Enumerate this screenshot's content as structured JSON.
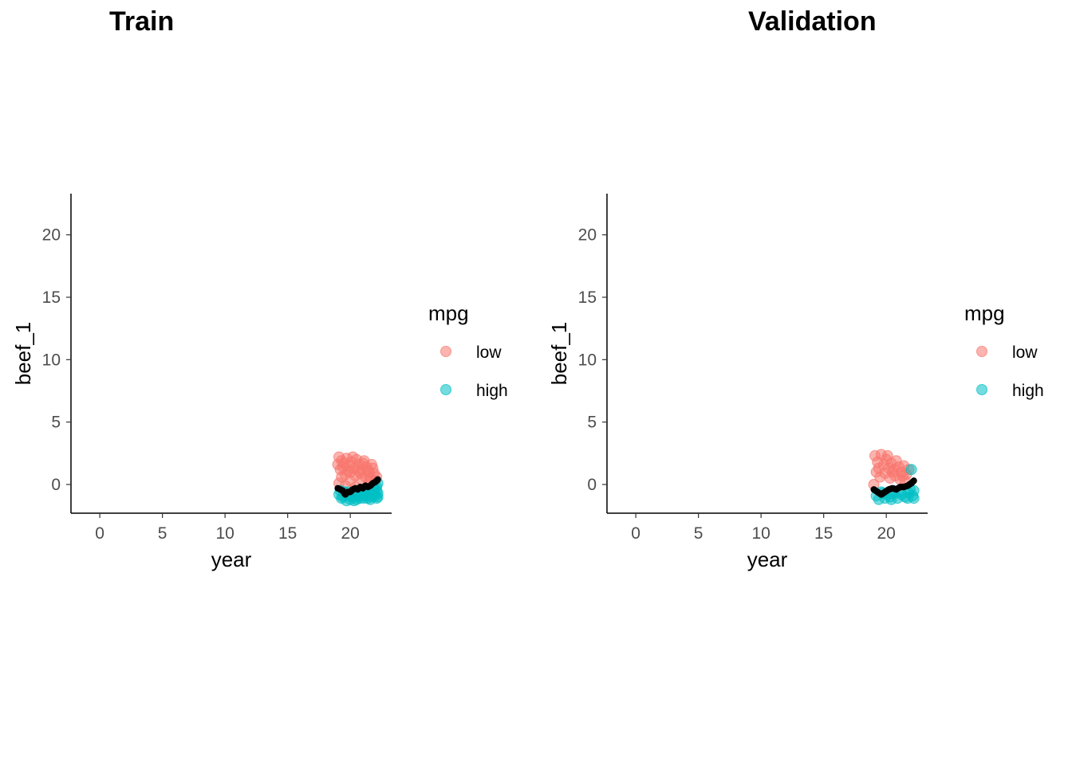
{
  "chart_data": [
    {
      "type": "scatter",
      "title": "Train",
      "xlabel": "year",
      "ylabel": "beef_1",
      "xlim": [
        -2.3,
        23.3
      ],
      "ylim": [
        -2.3,
        23.3
      ],
      "xticks": [
        0,
        5,
        10,
        15,
        20
      ],
      "yticks": [
        0,
        5,
        10,
        15,
        20
      ],
      "grid": false,
      "legend": {
        "title": "mpg",
        "position": "right",
        "entries": [
          "low",
          "high"
        ]
      },
      "colors": {
        "low": "#F8766D",
        "high": "#00BFC4",
        "line": "#000000"
      },
      "series": [
        {
          "name": "low",
          "points": [
            [
              19.1,
              2.2
            ],
            [
              19.3,
              1.9
            ],
            [
              19.5,
              1.7
            ],
            [
              19.7,
              2.1
            ],
            [
              19.9,
              1.5
            ],
            [
              20.1,
              1.8
            ],
            [
              20.3,
              1.3
            ],
            [
              20.5,
              2.0
            ],
            [
              20.7,
              1.6
            ],
            [
              20.9,
              1.2
            ],
            [
              21.1,
              1.9
            ],
            [
              21.3,
              1.4
            ],
            [
              21.5,
              1.0
            ],
            [
              21.7,
              1.6
            ],
            [
              21.9,
              0.9
            ],
            [
              22.1,
              0.6
            ],
            [
              19.2,
              1.2
            ],
            [
              19.6,
              0.8
            ],
            [
              20.0,
              1.0
            ],
            [
              20.4,
              0.7
            ],
            [
              20.8,
              0.9
            ],
            [
              21.2,
              0.6
            ],
            [
              21.6,
              0.5
            ],
            [
              19.4,
              1.4
            ],
            [
              20.2,
              2.2
            ],
            [
              20.6,
              1.1
            ],
            [
              21.0,
              1.7
            ],
            [
              21.4,
              1.1
            ],
            [
              21.8,
              1.3
            ],
            [
              19.8,
              1.1
            ],
            [
              19.0,
              1.6
            ],
            [
              19.3,
              0.6
            ],
            [
              20.0,
              0.3
            ],
            [
              20.9,
              0.4
            ],
            [
              21.5,
              0.2
            ],
            [
              22.0,
              0.3
            ],
            [
              19.1,
              0.1
            ],
            [
              19.6,
              -0.1
            ],
            [
              20.4,
              -0.2
            ],
            [
              21.2,
              -0.3
            ]
          ]
        },
        {
          "name": "high",
          "points": [
            [
              19.1,
              -0.8
            ],
            [
              19.3,
              -1.1
            ],
            [
              19.5,
              -0.6
            ],
            [
              19.7,
              -1.3
            ],
            [
              19.9,
              -0.9
            ],
            [
              20.1,
              -1.0
            ],
            [
              20.3,
              -0.7
            ],
            [
              20.5,
              -1.2
            ],
            [
              20.7,
              -0.8
            ],
            [
              20.9,
              -0.6
            ],
            [
              21.1,
              -1.1
            ],
            [
              21.3,
              -0.9
            ],
            [
              21.5,
              -0.7
            ],
            [
              21.7,
              -1.0
            ],
            [
              21.9,
              -0.8
            ],
            [
              22.1,
              -0.5
            ],
            [
              22.2,
              -1.0
            ],
            [
              19.2,
              -0.5
            ],
            [
              19.6,
              -0.9
            ],
            [
              20.0,
              -1.2
            ],
            [
              20.4,
              -0.9
            ],
            [
              20.8,
              -1.1
            ],
            [
              21.2,
              -0.7
            ],
            [
              21.6,
              -1.2
            ],
            [
              22.0,
              -0.9
            ],
            [
              19.4,
              -1.0
            ],
            [
              20.2,
              -0.6
            ],
            [
              20.6,
              -0.7
            ],
            [
              21.0,
              -0.9
            ],
            [
              21.4,
              -1.1
            ],
            [
              21.8,
              -0.6
            ],
            [
              22.2,
              -0.7
            ],
            [
              19.8,
              -0.6
            ],
            [
              20.6,
              -1.0
            ],
            [
              21.7,
              -0.8
            ],
            [
              22.1,
              -1.1
            ],
            [
              22.2,
              0.1
            ],
            [
              21.9,
              -0.3
            ],
            [
              22.1,
              -0.2
            ],
            [
              20.3,
              -1.3
            ]
          ]
        },
        {
          "name": "",
          "type": "line",
          "points": [
            [
              19.0,
              -0.3
            ],
            [
              19.2,
              -0.4
            ],
            [
              19.4,
              -0.5
            ],
            [
              19.6,
              -0.8
            ],
            [
              19.8,
              -0.6
            ],
            [
              20.0,
              -0.6
            ],
            [
              20.2,
              -0.4
            ],
            [
              20.4,
              -0.3
            ],
            [
              20.6,
              -0.4
            ],
            [
              20.8,
              -0.2
            ],
            [
              21.0,
              -0.3
            ],
            [
              21.2,
              -0.1
            ],
            [
              21.4,
              -0.2
            ],
            [
              21.6,
              -0.1
            ],
            [
              21.8,
              0.1
            ],
            [
              22.0,
              0.2
            ],
            [
              22.2,
              0.4
            ]
          ]
        }
      ]
    },
    {
      "type": "scatter",
      "title": "Validation",
      "xlabel": "year",
      "ylabel": "beef_1",
      "xlim": [
        -2.3,
        23.3
      ],
      "ylim": [
        -2.3,
        23.3
      ],
      "xticks": [
        0,
        5,
        10,
        15,
        20
      ],
      "yticks": [
        0,
        5,
        10,
        15,
        20
      ],
      "grid": false,
      "legend": {
        "title": "mpg",
        "position": "right",
        "entries": [
          "low",
          "high"
        ]
      },
      "colors": {
        "low": "#F8766D",
        "high": "#00BFC4",
        "line": "#000000"
      },
      "series": [
        {
          "name": "low",
          "points": [
            [
              19.1,
              2.3
            ],
            [
              19.3,
              1.8
            ],
            [
              19.6,
              2.4
            ],
            [
              19.8,
              1.6
            ],
            [
              20.0,
              2.0
            ],
            [
              20.2,
              1.3
            ],
            [
              20.4,
              1.7
            ],
            [
              20.6,
              1.2
            ],
            [
              20.8,
              1.9
            ],
            [
              21.0,
              1.4
            ],
            [
              21.2,
              1.0
            ],
            [
              21.4,
              1.5
            ],
            [
              21.6,
              0.8
            ],
            [
              21.8,
              1.2
            ],
            [
              19.2,
              1.0
            ],
            [
              19.5,
              0.6
            ],
            [
              19.9,
              0.9
            ],
            [
              20.3,
              0.5
            ],
            [
              20.7,
              0.7
            ],
            [
              21.1,
              0.4
            ],
            [
              21.5,
              0.3
            ],
            [
              19.0,
              0.0
            ],
            [
              19.4,
              1.3
            ],
            [
              20.1,
              2.3
            ],
            [
              20.5,
              1.0
            ],
            [
              21.3,
              0.7
            ]
          ]
        },
        {
          "name": "high",
          "points": [
            [
              19.2,
              -0.9
            ],
            [
              19.4,
              -1.2
            ],
            [
              19.7,
              -0.7
            ],
            [
              19.9,
              -1.1
            ],
            [
              20.1,
              -0.8
            ],
            [
              20.3,
              -1.0
            ],
            [
              20.6,
              -0.7
            ],
            [
              20.9,
              -1.1
            ],
            [
              21.2,
              -0.8
            ],
            [
              21.5,
              -1.0
            ],
            [
              21.8,
              -0.7
            ],
            [
              22.1,
              -0.9
            ],
            [
              22.2,
              -0.5
            ],
            [
              22.0,
              1.2
            ],
            [
              21.7,
              -1.1
            ],
            [
              21.0,
              -0.6
            ],
            [
              20.4,
              -1.2
            ],
            [
              19.6,
              -0.6
            ],
            [
              22.2,
              -1.1
            ],
            [
              21.9,
              -0.4
            ]
          ]
        },
        {
          "name": "",
          "type": "line",
          "points": [
            [
              19.0,
              -0.4
            ],
            [
              19.3,
              -0.6
            ],
            [
              19.6,
              -0.8
            ],
            [
              19.9,
              -0.6
            ],
            [
              20.2,
              -0.4
            ],
            [
              20.5,
              -0.3
            ],
            [
              20.8,
              -0.4
            ],
            [
              21.1,
              -0.2
            ],
            [
              21.4,
              -0.2
            ],
            [
              21.7,
              -0.1
            ],
            [
              22.0,
              0.1
            ],
            [
              22.2,
              0.3
            ]
          ]
        }
      ]
    }
  ]
}
